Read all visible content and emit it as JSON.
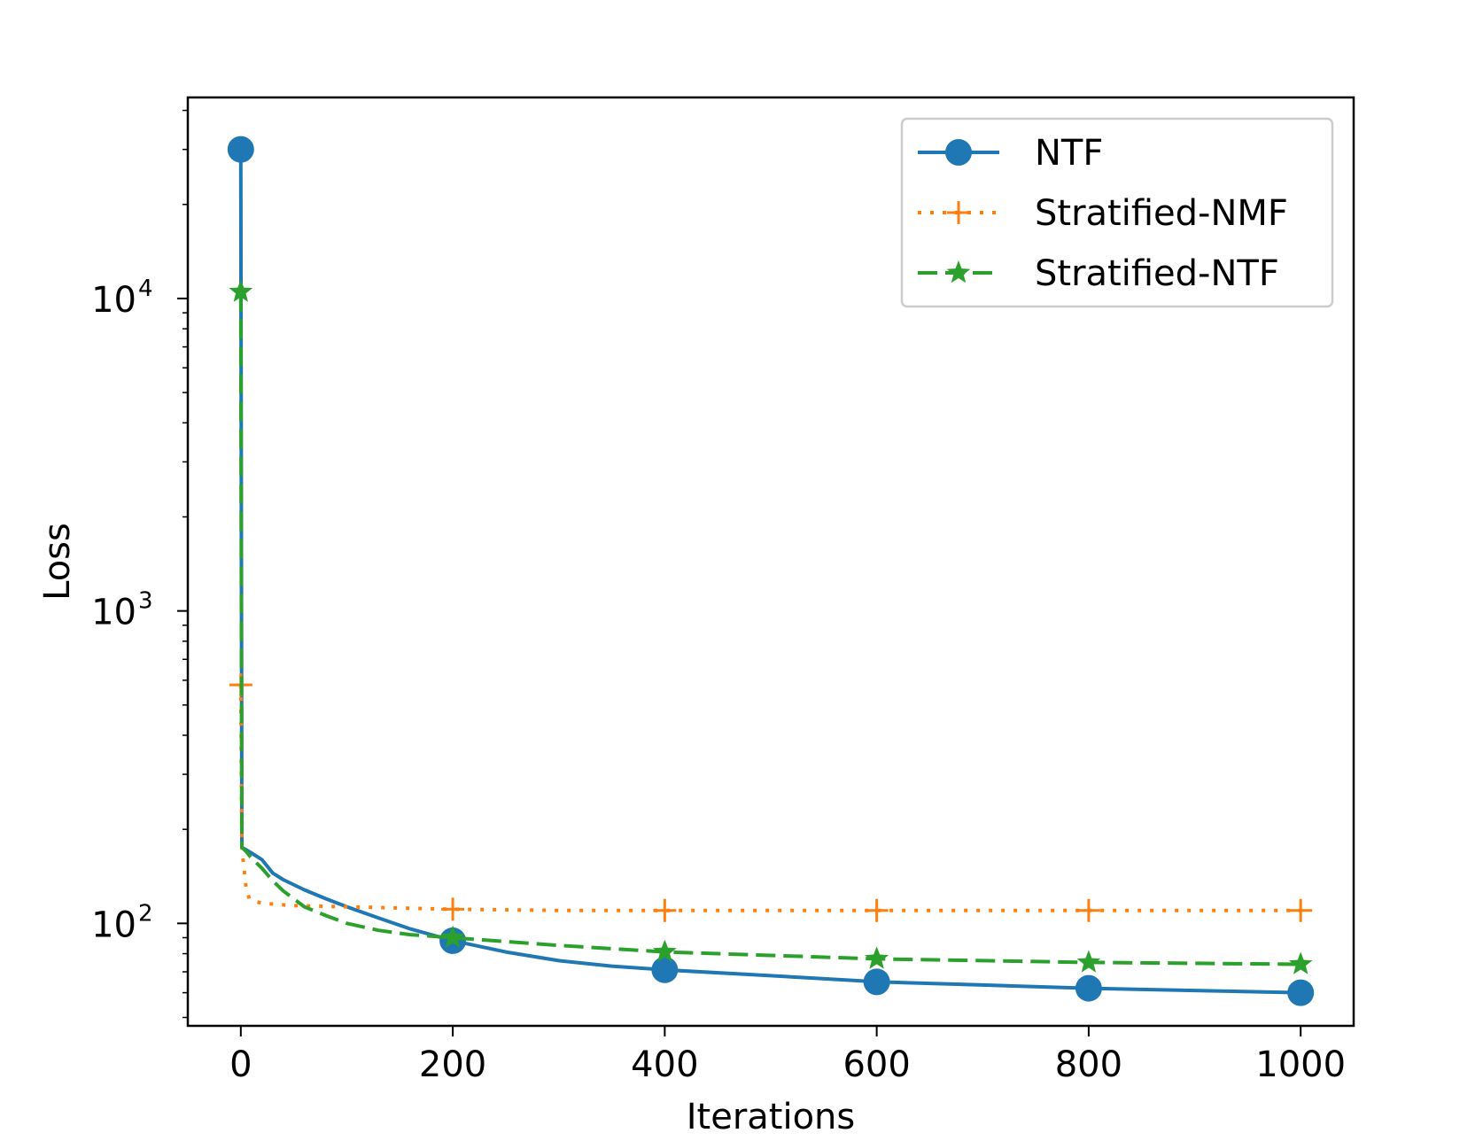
{
  "chart_data": {
    "type": "line",
    "title": "",
    "xlabel": "Iterations",
    "ylabel": "Loss",
    "xlim": [
      -50,
      1050
    ],
    "ylim": [
      47,
      44000
    ],
    "yscale": "log",
    "grid": false,
    "legend_position": "top-right",
    "xticks": [
      0,
      200,
      400,
      600,
      800,
      1000
    ],
    "xtick_labels": [
      "0",
      "200",
      "400",
      "600",
      "800",
      "1000"
    ],
    "yticks": [
      {
        "value": 100,
        "base": "10",
        "exponent": "2"
      },
      {
        "value": 1000,
        "base": "10",
        "exponent": "3"
      },
      {
        "value": 10000,
        "base": "10",
        "exponent": "4"
      }
    ],
    "series": [
      {
        "name": "NTF",
        "color": "#1f77b4",
        "linestyle": "solid",
        "marker": "circle",
        "x": [
          0,
          1,
          5,
          10,
          20,
          30,
          40,
          60,
          80,
          100,
          130,
          160,
          200,
          250,
          300,
          350,
          400,
          500,
          600,
          700,
          800,
          900,
          1000
        ],
        "y": [
          30000,
          175,
          172,
          168,
          160,
          145,
          138,
          128,
          120,
          113,
          104,
          96,
          88,
          81,
          76,
          73,
          71,
          68,
          65,
          63.5,
          62,
          61,
          60
        ],
        "marker_x": [
          0,
          200,
          400,
          600,
          800,
          1000
        ],
        "marker_y": [
          30000,
          88,
          71,
          65,
          62,
          60
        ]
      },
      {
        "name": "Stratified-NMF",
        "color": "#ff7f0e",
        "linestyle": "dotted",
        "marker": "plus",
        "x": [
          0,
          1,
          3,
          5,
          8,
          12,
          20,
          50,
          100,
          200,
          300,
          400,
          500,
          600,
          700,
          800,
          900,
          1000
        ],
        "y": [
          580,
          175,
          150,
          130,
          120,
          118,
          116,
          114,
          113,
          111,
          110,
          110,
          110,
          110,
          110,
          110,
          110,
          110
        ],
        "marker_x": [
          0,
          200,
          400,
          600,
          800,
          1000
        ],
        "marker_y": [
          580,
          111,
          110,
          110,
          110,
          110
        ]
      },
      {
        "name": "Stratified-NTF",
        "color": "#2ca02c",
        "linestyle": "dashed",
        "marker": "star",
        "x": [
          0,
          1,
          5,
          10,
          20,
          30,
          40,
          60,
          80,
          100,
          130,
          160,
          200,
          300,
          400,
          500,
          600,
          700,
          800,
          900,
          1000
        ],
        "y": [
          10500,
          175,
          170,
          162,
          150,
          137,
          127,
          113,
          106,
          100,
          95,
          92,
          90,
          85,
          81,
          79,
          77,
          76,
          75,
          74.5,
          74
        ],
        "marker_x": [
          0,
          200,
          400,
          600,
          800,
          1000
        ],
        "marker_y": [
          10500,
          90,
          81,
          77,
          75,
          74
        ]
      }
    ]
  }
}
